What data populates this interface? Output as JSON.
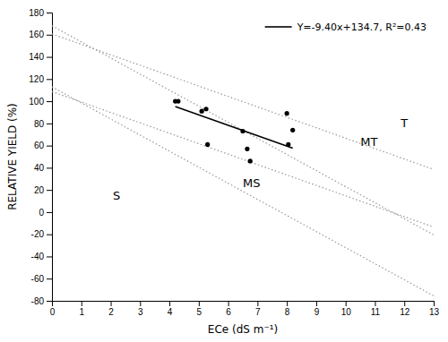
{
  "chart_data": {
    "type": "scatter",
    "xlabel": "ECe (dS m⁻¹)",
    "ylabel": "RELATIVE YIELD (%)",
    "xlim": [
      0,
      13
    ],
    "ylim": [
      -80,
      180
    ],
    "xticks": [
      0,
      1,
      2,
      3,
      4,
      5,
      6,
      7,
      8,
      9,
      10,
      11,
      12,
      13
    ],
    "yticks": [
      -80,
      -60,
      -40,
      -20,
      0,
      20,
      40,
      60,
      80,
      100,
      120,
      140,
      160,
      180
    ],
    "grid": false,
    "legend": "upper right",
    "series": [
      {
        "type": "line",
        "color": "#999999",
        "line_style": "dotted",
        "x": [
          0,
          13
        ],
        "values": [
          160.7,
          38.5
        ]
      },
      {
        "type": "line",
        "color": "#999999",
        "line_style": "dotted",
        "x": [
          0,
          13
        ],
        "values": [
          108.7,
          -13.5
        ]
      },
      {
        "type": "line",
        "color": "#999999",
        "line_style": "dotted",
        "x": [
          0,
          13
        ],
        "values": [
          168.0,
          -20.5
        ]
      },
      {
        "type": "line",
        "color": "#999999",
        "line_style": "dotted",
        "x": [
          0,
          13
        ],
        "values": [
          113.0,
          -75.5
        ]
      },
      {
        "type": "line",
        "name": "Y=-9.40x+134.7, R²=0.43",
        "color": "black",
        "line_style": "solid",
        "x": [
          4.2,
          8.2
        ],
        "values": [
          95.22,
          57.62
        ]
      },
      {
        "type": "scatter",
        "color": "black",
        "marker": "circle",
        "x": [
          4.2,
          4.3,
          5.1,
          5.25,
          5.3,
          6.5,
          6.65,
          6.75,
          8.0,
          8.05,
          8.2
        ],
        "values": [
          100,
          100,
          91,
          93,
          61,
          73,
          57,
          46,
          89,
          61,
          74
        ]
      }
    ],
    "annotations": [
      {
        "text": "S",
        "x": 2.2,
        "y": 15
      },
      {
        "text": "MS",
        "x": 6.8,
        "y": 26
      },
      {
        "text": "MT",
        "x": 10.8,
        "y": 63
      },
      {
        "text": "T",
        "x": 12.0,
        "y": 80
      }
    ]
  }
}
